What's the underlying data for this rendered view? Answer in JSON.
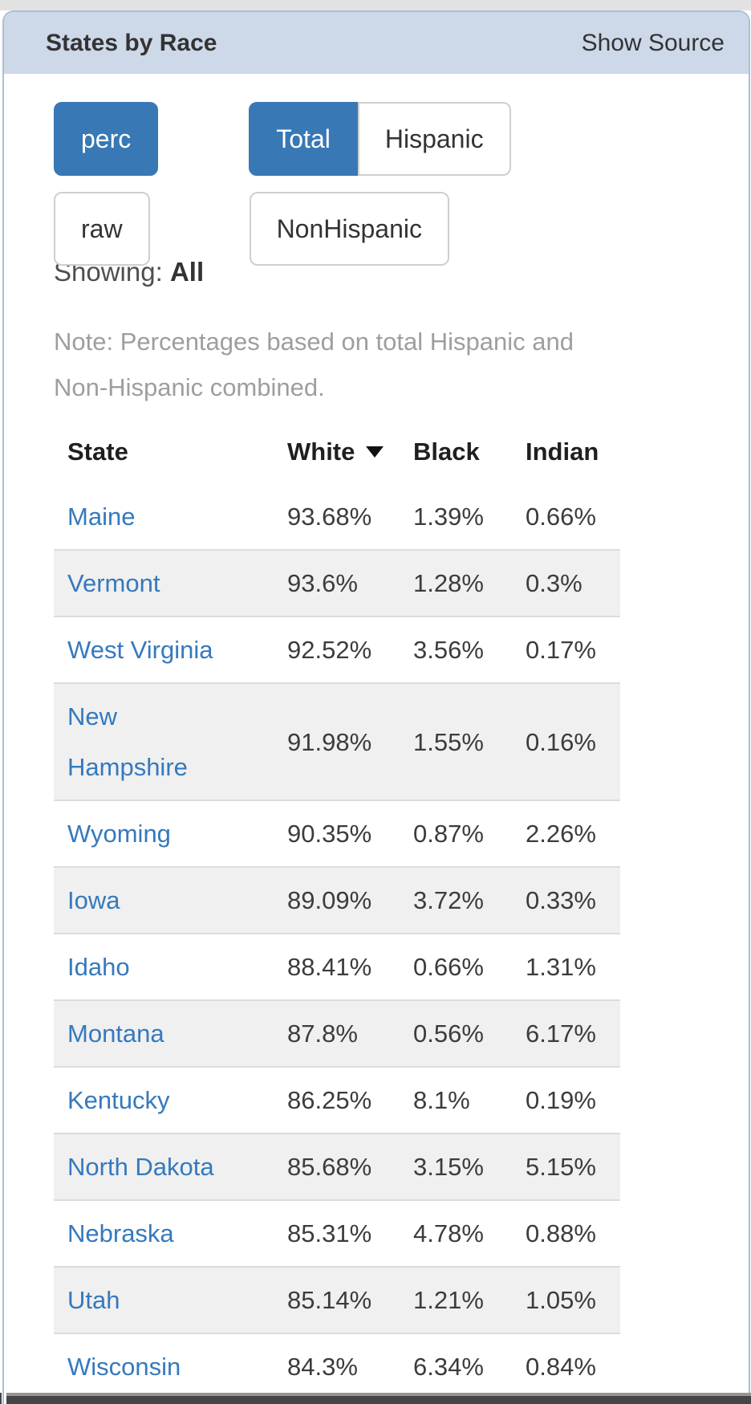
{
  "header": {
    "title": "States by Race",
    "action_label": "Show Source"
  },
  "controls": {
    "value_mode": {
      "options": [
        {
          "label": "perc",
          "active": true
        },
        {
          "label": "raw",
          "active": false
        }
      ]
    },
    "population": {
      "options": [
        {
          "label": "Total",
          "active": true
        },
        {
          "label": "Hispanic",
          "active": false
        },
        {
          "label": "NonHispanic",
          "active": false
        }
      ]
    }
  },
  "showing": {
    "label": "Showing:",
    "value": "All"
  },
  "note": "Note: Percentages based on total Hispanic and Non-Hispanic combined.",
  "table": {
    "columns": [
      "State",
      "White",
      "Black",
      "Indian"
    ],
    "sort": {
      "column": "White",
      "direction": "desc"
    },
    "rows": [
      {
        "state": "Maine",
        "white": "93.68%",
        "black": "1.39%",
        "indian": "0.66%"
      },
      {
        "state": "Vermont",
        "white": "93.6%",
        "black": "1.28%",
        "indian": "0.3%"
      },
      {
        "state": "West Virginia",
        "white": "92.52%",
        "black": "3.56%",
        "indian": "0.17%"
      },
      {
        "state": "New Hampshire",
        "white": "91.98%",
        "black": "1.55%",
        "indian": "0.16%"
      },
      {
        "state": "Wyoming",
        "white": "90.35%",
        "black": "0.87%",
        "indian": "2.26%"
      },
      {
        "state": "Iowa",
        "white": "89.09%",
        "black": "3.72%",
        "indian": "0.33%"
      },
      {
        "state": "Idaho",
        "white": "88.41%",
        "black": "0.66%",
        "indian": "1.31%"
      },
      {
        "state": "Montana",
        "white": "87.8%",
        "black": "0.56%",
        "indian": "6.17%"
      },
      {
        "state": "Kentucky",
        "white": "86.25%",
        "black": "8.1%",
        "indian": "0.19%"
      },
      {
        "state": "North Dakota",
        "white": "85.68%",
        "black": "3.15%",
        "indian": "5.15%"
      },
      {
        "state": "Nebraska",
        "white": "85.31%",
        "black": "4.78%",
        "indian": "0.88%"
      },
      {
        "state": "Utah",
        "white": "85.14%",
        "black": "1.21%",
        "indian": "1.05%"
      },
      {
        "state": "Wisconsin",
        "white": "84.3%",
        "black": "6.34%",
        "indian": "0.84%"
      }
    ]
  },
  "colors": {
    "accent_blue": "#3878b5",
    "header_background": "#cdd9e9",
    "link_blue": "#3579bd",
    "row_stripe": "#f0f0f0",
    "note_gray": "#9e9e9e"
  }
}
